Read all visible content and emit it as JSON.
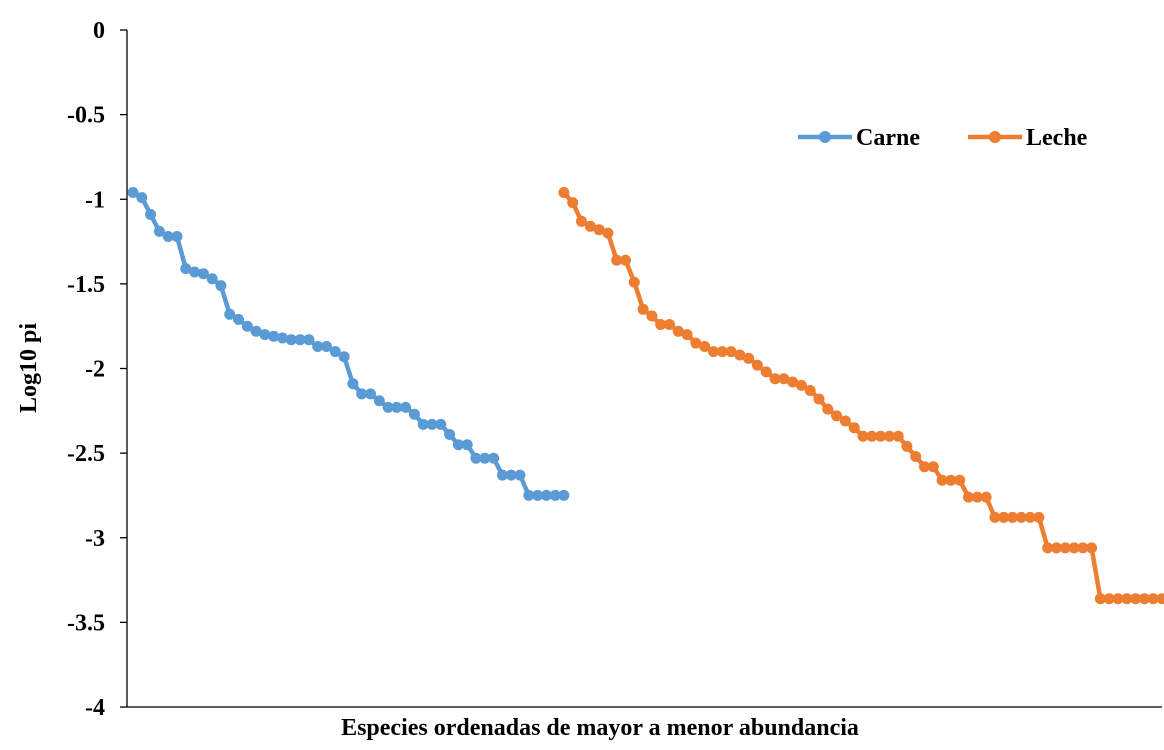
{
  "chart_data": {
    "type": "line",
    "title": "",
    "xlabel": "Especies ordenadas de mayor a menor abundancia",
    "ylabel": "Log10 pi",
    "ylim": [
      -4,
      0
    ],
    "yticks": [
      0,
      -0.5,
      -1,
      -1.5,
      -2,
      -2.5,
      -3,
      -3.5,
      -4
    ],
    "ytick_labels": [
      "0",
      "-0.5",
      "-1",
      "-1.5",
      "-2",
      "-2.5",
      "-3",
      "-3.5",
      "-4"
    ],
    "x_axis": "species rank (1 to 118, no tick labels)",
    "xlim": [
      0,
      118
    ],
    "grid": false,
    "legend_position": "top-right",
    "series": [
      {
        "name": "Carne",
        "color": "#5B9BD5",
        "x": [
          1,
          2,
          3,
          4,
          5,
          6,
          7,
          8,
          9,
          10,
          11,
          12,
          13,
          14,
          15,
          16,
          17,
          18,
          19,
          20,
          21,
          22,
          23,
          24,
          25,
          26,
          27,
          28,
          29,
          30,
          31,
          32,
          33,
          34,
          35,
          36,
          37,
          38,
          39,
          40,
          41,
          42,
          43,
          44,
          45,
          46,
          47,
          48,
          49,
          50
        ],
        "y": [
          -0.96,
          -0.99,
          -1.09,
          -1.19,
          -1.22,
          -1.22,
          -1.41,
          -1.43,
          -1.44,
          -1.47,
          -1.51,
          -1.68,
          -1.71,
          -1.75,
          -1.78,
          -1.8,
          -1.81,
          -1.82,
          -1.83,
          -1.83,
          -1.83,
          -1.87,
          -1.87,
          -1.9,
          -1.93,
          -2.09,
          -2.15,
          -2.15,
          -2.19,
          -2.23,
          -2.23,
          -2.23,
          -2.27,
          -2.33,
          -2.33,
          -2.33,
          -2.39,
          -2.45,
          -2.45,
          -2.53,
          -2.53,
          -2.53,
          -2.63,
          -2.63,
          -2.63,
          -2.75,
          -2.75,
          -2.75,
          -2.75,
          -2.75
        ]
      },
      {
        "name": "Leche",
        "color": "#ED7D31",
        "x": [
          50,
          51,
          52,
          53,
          54,
          55,
          56,
          57,
          58,
          59,
          60,
          61,
          62,
          63,
          64,
          65,
          66,
          67,
          68,
          69,
          70,
          71,
          72,
          73,
          74,
          75,
          76,
          77,
          78,
          79,
          80,
          81,
          82,
          83,
          84,
          85,
          86,
          87,
          88,
          89,
          90,
          91,
          92,
          93,
          94,
          95,
          96,
          97,
          98,
          99,
          100,
          101,
          102,
          103,
          104,
          105,
          106,
          107,
          108,
          109,
          110,
          111,
          112,
          113,
          114,
          115,
          116,
          117,
          118
        ],
        "y": [
          -0.96,
          -1.02,
          -1.13,
          -1.16,
          -1.18,
          -1.2,
          -1.36,
          -1.36,
          -1.49,
          -1.65,
          -1.69,
          -1.74,
          -1.74,
          -1.78,
          -1.8,
          -1.85,
          -1.87,
          -1.9,
          -1.9,
          -1.9,
          -1.92,
          -1.94,
          -1.98,
          -2.02,
          -2.06,
          -2.06,
          -2.08,
          -2.1,
          -2.13,
          -2.18,
          -2.24,
          -2.28,
          -2.31,
          -2.35,
          -2.4,
          -2.4,
          -2.4,
          -2.4,
          -2.4,
          -2.46,
          -2.52,
          -2.58,
          -2.58,
          -2.66,
          -2.66,
          -2.66,
          -2.76,
          -2.76,
          -2.76,
          -2.88,
          -2.88,
          -2.88,
          -2.88,
          -2.88,
          -2.88,
          -3.06,
          -3.06,
          -3.06,
          -3.06,
          -3.06,
          -3.06,
          -3.36,
          -3.36,
          -3.36,
          -3.36,
          -3.36,
          -3.36,
          -3.36,
          -3.36
        ]
      }
    ]
  }
}
